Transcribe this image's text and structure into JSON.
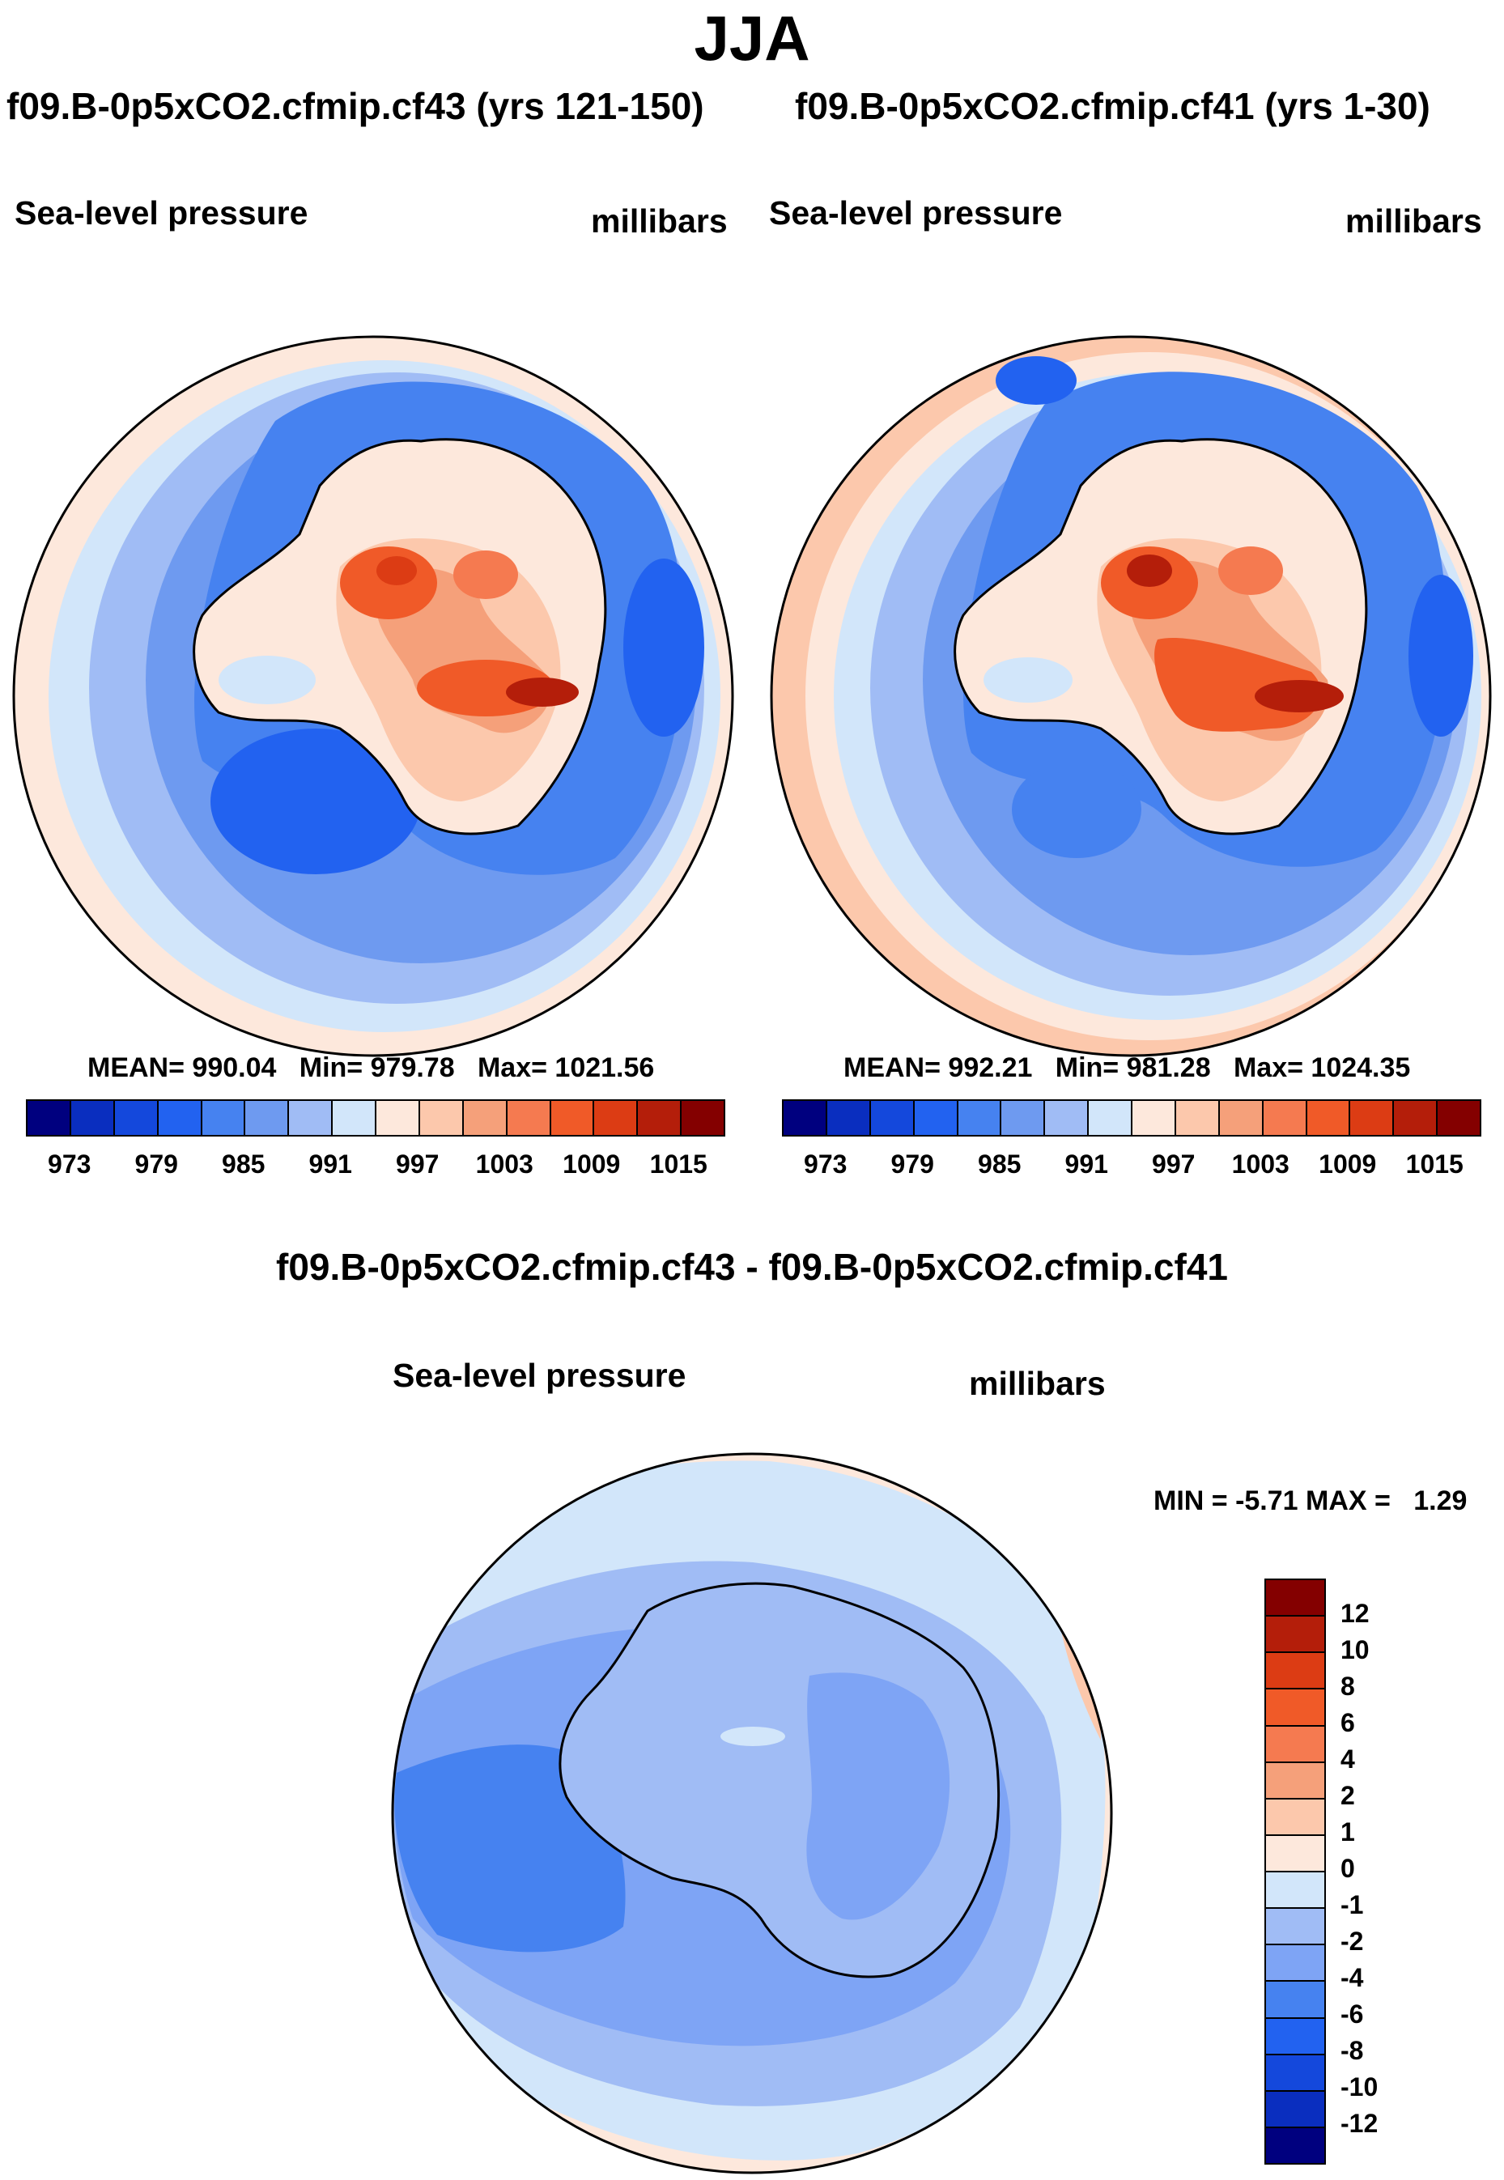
{
  "season": "JJA",
  "panels": [
    {
      "title": "f09.B-0p5xCO2.cfmip.cf43 (yrs 121-150)",
      "variable": "Sea-level pressure",
      "units": "millibars",
      "mean_label": "MEAN=",
      "mean": "990.04",
      "min_label": "Min=",
      "min": "979.78",
      "max_label": "Max=",
      "max": "1021.56"
    },
    {
      "title": "f09.B-0p5xCO2.cfmip.cf41 (yrs 1-30)",
      "variable": "Sea-level pressure",
      "units": "millibars",
      "mean_label": "MEAN=",
      "mean": "992.21",
      "min_label": "Min=",
      "min": "981.28",
      "max_label": "Max=",
      "max": "1024.35"
    }
  ],
  "field_colorbar": {
    "colors": [
      "#00007f",
      "#0a2ebf",
      "#1448dc",
      "#2262f0",
      "#4682f0",
      "#6e9af0",
      "#a0bcf5",
      "#d2e6fa",
      "#fde8dc",
      "#fcc8ac",
      "#f5a07a",
      "#f57a50",
      "#f05a28",
      "#dc3c14",
      "#b41e0a",
      "#840000"
    ],
    "ticks": [
      "973",
      "979",
      "985",
      "991",
      "997",
      "1003",
      "1009",
      "1015"
    ]
  },
  "difference": {
    "title": "f09.B-0p5xCO2.cfmip.cf43 - f09.B-0p5xCO2.cfmip.cf41",
    "variable": "Sea-level pressure",
    "units": "millibars",
    "min_label": "MIN =",
    "min": "-5.71",
    "max_label": "MAX =",
    "max": "1.29",
    "colors": [
      "#840000",
      "#b41e0a",
      "#dc3c14",
      "#f05a28",
      "#f57a50",
      "#f5a07a",
      "#fcc8ac",
      "#fde8dc",
      "#d2e6fa",
      "#a0bcf5",
      "#7ea4f5",
      "#4682f0",
      "#2262f0",
      "#1448dc",
      "#0a2ebf",
      "#00007f"
    ],
    "ticks": [
      "12",
      "10",
      "8",
      "6",
      "4",
      "2",
      "1",
      "0",
      "-1",
      "-2",
      "-4",
      "-6",
      "-8",
      "-10",
      "-12"
    ]
  }
}
